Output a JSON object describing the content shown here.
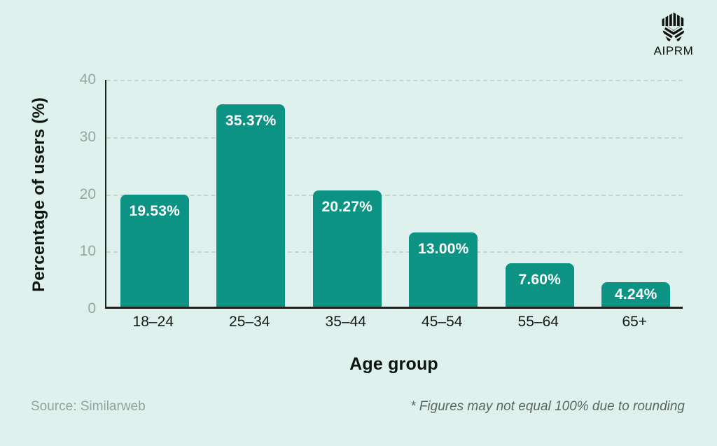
{
  "brand": {
    "name": "AIPRM"
  },
  "colors": {
    "background": "#def1ec",
    "axis": "#1d2220",
    "tick_label": "#99a5a1"
  },
  "chart_data": {
    "type": "bar",
    "categories": [
      "18–24",
      "25–34",
      "35–44",
      "45–54",
      "55–64",
      "65+"
    ],
    "values": [
      19.53,
      35.37,
      20.27,
      13.0,
      7.6,
      4.24
    ],
    "value_labels": [
      "19.53%",
      "35.37%",
      "20.27%",
      "13.00%",
      "7.60%",
      "4.24%"
    ],
    "xlabel": "Age group",
    "ylabel": "Percentage of users (%)",
    "ylim": [
      0,
      40
    ],
    "yticks": [
      0,
      10,
      20,
      30,
      40
    ],
    "grid": "horizontal-dashed",
    "legend": "none",
    "bar_color": "#0d9384",
    "bar_label_color": "#ffffff"
  },
  "footer": {
    "source": "Source: Similarweb",
    "note": "* Figures may not equal 100% due to rounding"
  }
}
